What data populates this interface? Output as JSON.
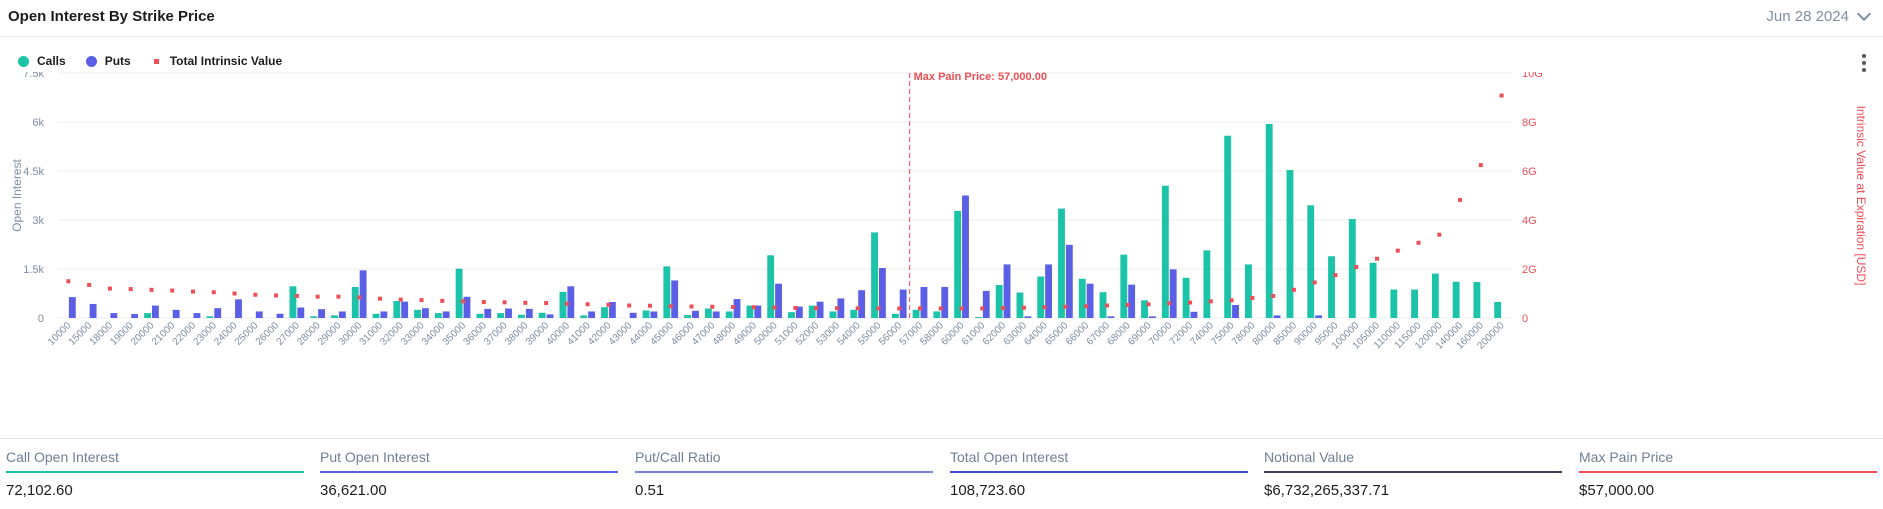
{
  "header": {
    "title": "Open Interest By Strike Price",
    "date": "Jun 28 2024"
  },
  "legend": [
    {
      "label": "Calls",
      "color": "#1bc4a8"
    },
    {
      "label": "Puts",
      "color": "#5a5fe6"
    },
    {
      "label": "Total Intrinsic Value",
      "color": "#ee4e55"
    }
  ],
  "chart_data": {
    "type": "bar",
    "ylabel": "Open Interest",
    "y2label": "Intrinsic Value at Expiration [USD]",
    "ylim": [
      0,
      7500
    ],
    "y2lim": [
      0,
      10000000000
    ],
    "yticks": [
      "0",
      "1.5k",
      "3k",
      "4.5k",
      "6k",
      "7.5k"
    ],
    "y2ticks": [
      "0",
      "2G",
      "4G",
      "6G",
      "8G",
      "10G"
    ],
    "annotation": {
      "label": "Max Pain Price: 57,000.00",
      "x": "57000"
    },
    "categories": [
      "10000",
      "15000",
      "18000",
      "19000",
      "20000",
      "21000",
      "22000",
      "23000",
      "24000",
      "25000",
      "26000",
      "27000",
      "28000",
      "29000",
      "30000",
      "31000",
      "32000",
      "33000",
      "34000",
      "35000",
      "36000",
      "37000",
      "38000",
      "39000",
      "40000",
      "41000",
      "42000",
      "43000",
      "44000",
      "45000",
      "46000",
      "47000",
      "48000",
      "49000",
      "50000",
      "51000",
      "52000",
      "53000",
      "54000",
      "55000",
      "56000",
      "57000",
      "58000",
      "60000",
      "61000",
      "62000",
      "63000",
      "64000",
      "65000",
      "66000",
      "67000",
      "68000",
      "69000",
      "70000",
      "72000",
      "74000",
      "75000",
      "78000",
      "80000",
      "85000",
      "90000",
      "95000",
      "100000",
      "105000",
      "110000",
      "115000",
      "120000",
      "140000",
      "160000",
      "200000"
    ],
    "series": [
      {
        "name": "Calls",
        "color": "#1bc4a8",
        "values": [
          0,
          0,
          0,
          0,
          150,
          0,
          0,
          50,
          0,
          0,
          0,
          970,
          50,
          80,
          950,
          130,
          520,
          250,
          150,
          1510,
          130,
          150,
          100,
          160,
          800,
          80,
          330,
          0,
          230,
          1580,
          90,
          290,
          200,
          380,
          1920,
          180,
          380,
          200,
          250,
          2620,
          130,
          250,
          200,
          3280,
          30,
          1010,
          780,
          1270,
          3350,
          1200,
          790,
          1940,
          540,
          4050,
          1230,
          2070,
          5580,
          1640,
          5940,
          4530,
          3450,
          1890,
          3030,
          1690,
          870,
          870,
          1360,
          1110,
          1100,
          490
        ]
      },
      {
        "name": "Puts",
        "color": "#5a5fe6",
        "values": [
          640,
          430,
          150,
          120,
          380,
          250,
          150,
          300,
          570,
          200,
          130,
          320,
          270,
          200,
          1460,
          200,
          500,
          300,
          200,
          650,
          280,
          290,
          280,
          110,
          970,
          200,
          490,
          160,
          200,
          1150,
          220,
          200,
          580,
          380,
          1050,
          350,
          500,
          600,
          850,
          1530,
          870,
          950,
          950,
          3750,
          830,
          1640,
          50,
          1640,
          2240,
          1050,
          50,
          1020,
          50,
          1490,
          190,
          0,
          400,
          0,
          80,
          0,
          80,
          0,
          0,
          0,
          0,
          0,
          0,
          0,
          0,
          0
        ]
      },
      {
        "name": "Total Intrinsic Value",
        "color": "#ee4e55",
        "values": [
          1500000000,
          1350000000,
          1200000000,
          1180000000,
          1150000000,
          1120000000,
          1080000000,
          1050000000,
          1000000000,
          950000000,
          920000000,
          900000000,
          870000000,
          870000000,
          840000000,
          790000000,
          750000000,
          730000000,
          700000000,
          680000000,
          650000000,
          640000000,
          620000000,
          610000000,
          580000000,
          560000000,
          540000000,
          510000000,
          500000000,
          480000000,
          470000000,
          460000000,
          450000000,
          440000000,
          430000000,
          410000000,
          400000000,
          400000000,
          400000000,
          390000000,
          390000000,
          390000000,
          390000000,
          390000000,
          390000000,
          410000000,
          420000000,
          440000000,
          460000000,
          480000000,
          510000000,
          530000000,
          560000000,
          600000000,
          630000000,
          680000000,
          720000000,
          820000000,
          900000000,
          1150000000,
          1450000000,
          1750000000,
          2080000000,
          2420000000,
          2750000000,
          3070000000,
          3400000000,
          4820000000,
          6240000000,
          9080000000
        ]
      }
    ]
  },
  "stats": [
    {
      "label": "Call Open Interest",
      "value": "72,102.60",
      "color": "#1bc4a8"
    },
    {
      "label": "Put Open Interest",
      "value": "36,621.00",
      "color": "#5a5fe6"
    },
    {
      "label": "Put/Call Ratio",
      "value": "0.51",
      "color": "#7b7fe0"
    },
    {
      "label": "Total Open Interest",
      "value": "108,723.60",
      "color": "#3b4fcf"
    },
    {
      "label": "Notional Value",
      "value": "$6,732,265,337.71",
      "color": "#3a3f55"
    },
    {
      "label": "Max Pain Price",
      "value": "$57,000.00",
      "color": "#ee4e55"
    }
  ]
}
